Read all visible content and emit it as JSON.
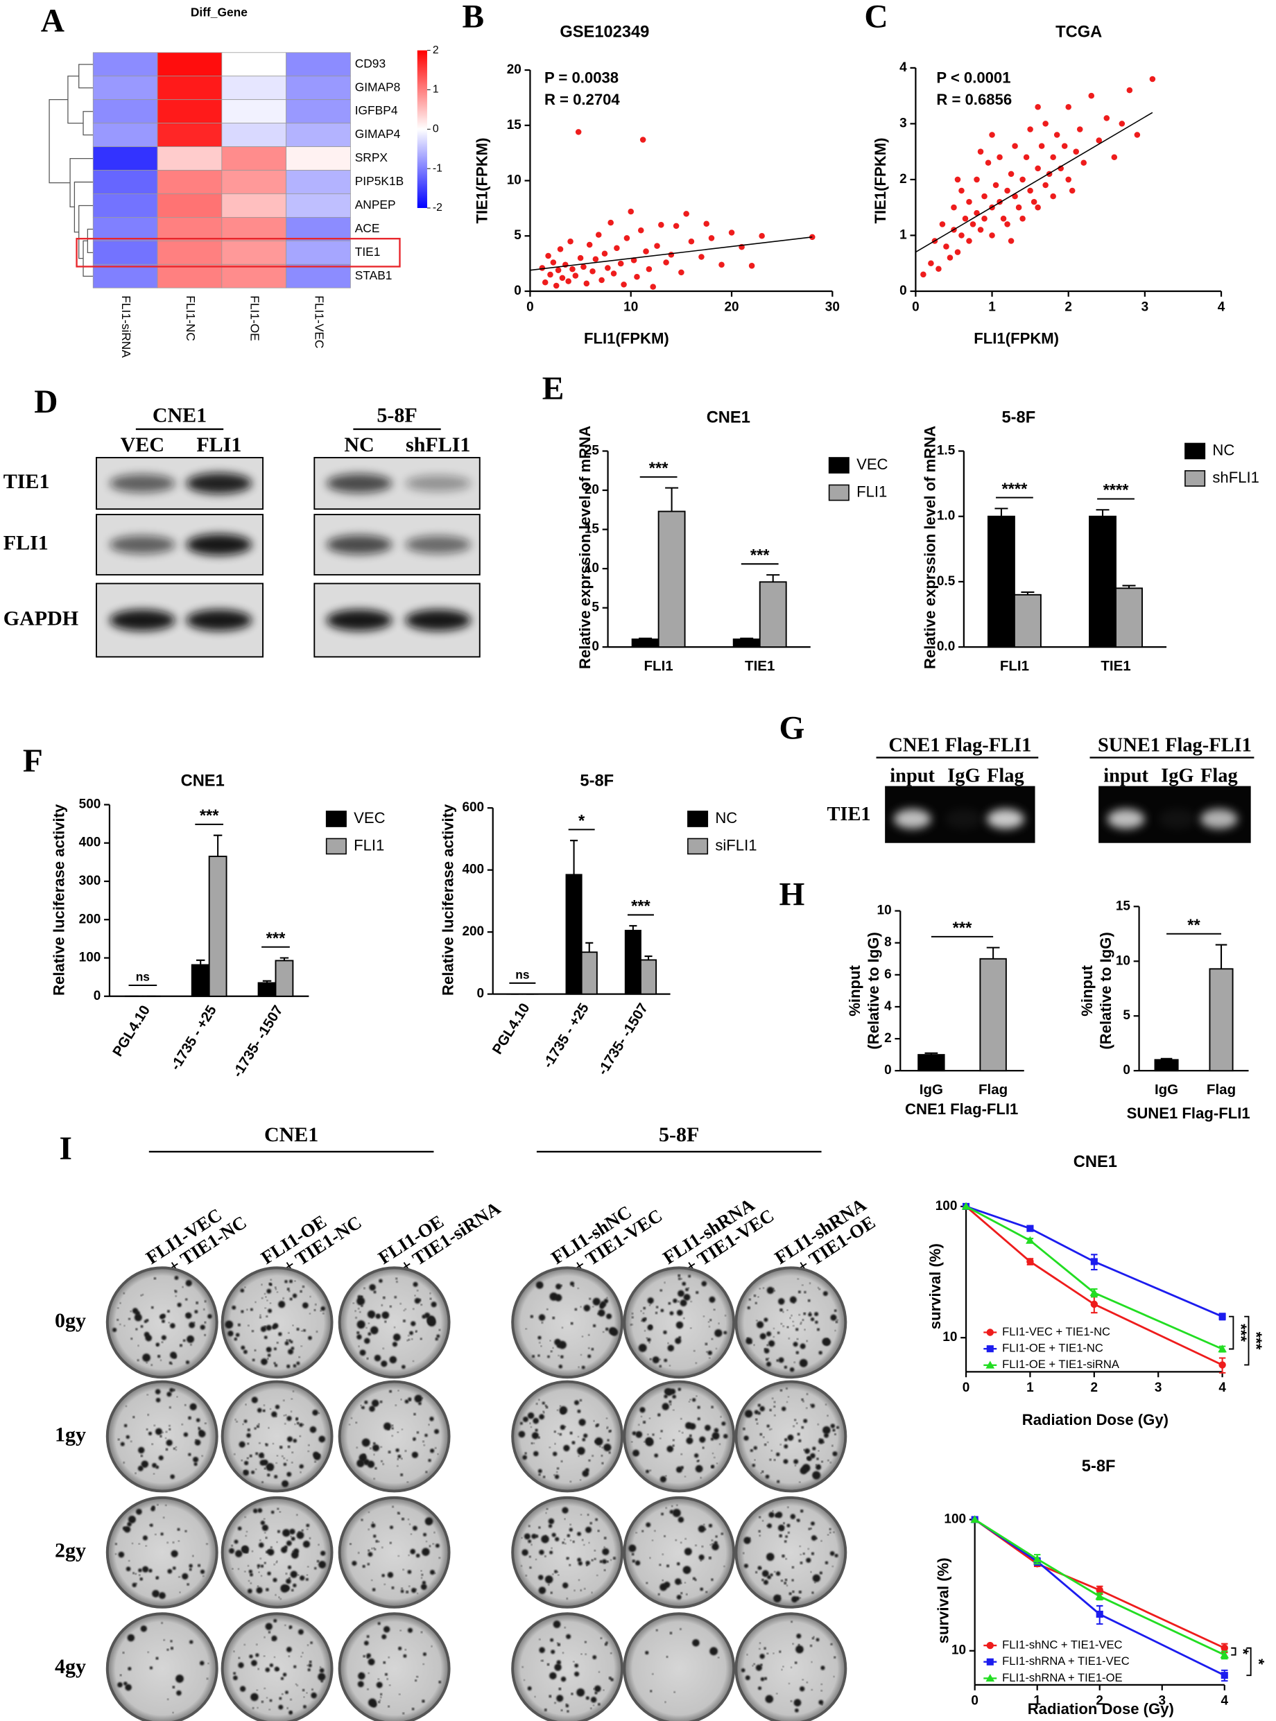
{
  "figure": {
    "panel_letters": [
      "A",
      "B",
      "C",
      "D",
      "E",
      "F",
      "G",
      "H",
      "I"
    ],
    "blot_D": {
      "groups": [
        {
          "name": "CNE1",
          "lanes": [
            "VEC",
            "FLI1"
          ]
        },
        {
          "name": "5-8F",
          "lanes": [
            "NC",
            "shFLI1"
          ]
        }
      ],
      "rows": [
        "TIE1",
        "FLI1",
        "GAPDH"
      ]
    },
    "gel_G": {
      "groups": [
        {
          "name": "CNE1 Flag-FLI1",
          "lanes": [
            "input",
            "IgG",
            "Flag"
          ]
        },
        {
          "name": "SUNE1 Flag-FLI1",
          "lanes": [
            "input",
            "IgG",
            "Flag"
          ]
        }
      ],
      "row": "TIE1"
    },
    "colony_I": {
      "groups": [
        {
          "name": "CNE1",
          "columns": [
            [
              "FLI1-VEC",
              "+ TIE1-NC"
            ],
            [
              "FLI1-OE",
              "+ TIE1-NC"
            ],
            [
              "FLI1-OE",
              "+ TIE1-siRNA"
            ]
          ]
        },
        {
          "name": "5-8F",
          "columns": [
            [
              "FLI1-shNC",
              "+ TIE1-VEC"
            ],
            [
              "FLI1-shRNA",
              "+ TIE1-VEC"
            ],
            [
              "FLI1-shRNA",
              "+ TIE1-OE"
            ]
          ]
        }
      ],
      "rows": [
        "0gy",
        "1gy",
        "2gy",
        "4gy"
      ]
    }
  },
  "chart_data": [
    {
      "type": "heatmap",
      "title": "Diff_Gene",
      "rows": [
        "CD93",
        "GIMAP8",
        "IGFBP4",
        "GIMAP4",
        "SRPX",
        "PIP5K1B",
        "ANPEP",
        "ACE",
        "TIE1",
        "STAB1"
      ],
      "columns": [
        "FLI1-siRNA",
        "FLI1-NC",
        "FLI1-OE",
        "FLI1-VEC"
      ],
      "values": [
        [
          -0.9,
          1.9,
          0.0,
          -0.9
        ],
        [
          -0.8,
          1.8,
          -0.2,
          -0.8
        ],
        [
          -0.9,
          1.8,
          -0.1,
          -0.8
        ],
        [
          -0.8,
          1.7,
          -0.3,
          -0.6
        ],
        [
          -1.6,
          0.4,
          0.9,
          0.1
        ],
        [
          -1.2,
          1.0,
          0.8,
          -0.6
        ],
        [
          -1.1,
          1.1,
          0.5,
          -0.5
        ],
        [
          -1.0,
          1.0,
          0.9,
          -0.9
        ],
        [
          -1.1,
          1.0,
          0.8,
          -0.7
        ],
        [
          -1.0,
          1.0,
          0.9,
          -0.9
        ]
      ],
      "zlim": [
        -2,
        2
      ],
      "zticks": [
        2,
        1,
        0,
        -1,
        -2
      ],
      "colors": [
        "#0000ff",
        "#ffffff",
        "#ff0000"
      ],
      "highlight_row": 8,
      "highlight_color": "#e8262b"
    },
    {
      "type": "scatter",
      "title": "GSE102349",
      "xlabel": "FLI1(FPKM)",
      "ylabel": "TIE1(FPKM)",
      "x": [
        1.2,
        1.5,
        1.8,
        2.0,
        2.3,
        2.6,
        2.8,
        3.0,
        3.2,
        3.5,
        3.8,
        4.0,
        4.2,
        4.5,
        4.8,
        5.0,
        5.3,
        5.6,
        5.9,
        6.2,
        6.5,
        6.8,
        7.1,
        7.4,
        7.7,
        8.0,
        8.3,
        8.6,
        9.0,
        9.3,
        9.6,
        10.0,
        10.3,
        10.6,
        11.0,
        11.2,
        11.5,
        11.8,
        12.2,
        12.6,
        13.0,
        13.5,
        14.0,
        14.5,
        15.0,
        15.5,
        16.0,
        17.0,
        17.5,
        18.0,
        19.0,
        20.0,
        21.0,
        22.0,
        23.0,
        28.0
      ],
      "values": [
        2.1,
        0.8,
        3.2,
        1.5,
        2.6,
        0.5,
        1.9,
        3.8,
        1.2,
        2.4,
        0.9,
        4.5,
        2.0,
        1.4,
        14.4,
        3.0,
        2.2,
        0.7,
        4.2,
        1.8,
        2.9,
        5.1,
        1.0,
        3.4,
        2.1,
        6.2,
        1.6,
        3.9,
        2.5,
        0.6,
        4.8,
        7.2,
        2.8,
        1.3,
        5.5,
        13.7,
        3.6,
        2.0,
        0.4,
        4.1,
        6.0,
        2.6,
        3.3,
        5.9,
        1.7,
        7.0,
        4.5,
        3.1,
        6.1,
        4.8,
        2.4,
        5.3,
        4.0,
        2.3,
        5.0,
        4.9
      ],
      "color": "#ee1c1c",
      "xlim": [
        0,
        30
      ],
      "xticks": [
        0,
        10,
        20,
        30
      ],
      "ylim": [
        0,
        20
      ],
      "yticks": [
        0,
        5,
        10,
        15,
        20
      ],
      "annotations": [
        "P = 0.0038",
        "R =  0.2704"
      ],
      "trendline": {
        "x": [
          0,
          28
        ],
        "y": [
          1.9,
          4.9
        ]
      }
    },
    {
      "type": "scatter",
      "title": "TCGA",
      "xlabel": "FLI1(FPKM)",
      "ylabel": "TIE1(FPKM)",
      "x": [
        0.1,
        0.2,
        0.25,
        0.3,
        0.35,
        0.4,
        0.45,
        0.5,
        0.5,
        0.55,
        0.6,
        0.6,
        0.65,
        0.7,
        0.7,
        0.75,
        0.8,
        0.8,
        0.85,
        0.9,
        0.9,
        0.95,
        1.0,
        1.0,
        1.05,
        1.1,
        1.1,
        1.15,
        1.2,
        1.2,
        1.25,
        1.3,
        1.3,
        1.35,
        1.4,
        1.4,
        1.45,
        1.5,
        1.5,
        1.55,
        1.6,
        1.6,
        1.65,
        1.7,
        1.7,
        1.75,
        1.8,
        1.8,
        1.85,
        1.9,
        1.95,
        2.0,
        2.0,
        2.1,
        2.15,
        2.2,
        2.3,
        2.4,
        2.5,
        2.6,
        2.7,
        2.8,
        2.9,
        3.1,
        0.85,
        1.25,
        1.6,
        2.05,
        0.55,
        1.0
      ],
      "values": [
        0.3,
        0.5,
        0.9,
        0.4,
        1.2,
        0.8,
        0.6,
        1.1,
        1.5,
        0.7,
        1.0,
        1.8,
        1.3,
        0.9,
        1.6,
        1.2,
        1.4,
        2.0,
        1.1,
        1.7,
        1.3,
        2.3,
        1.5,
        1.0,
        1.9,
        1.6,
        2.4,
        1.3,
        1.8,
        1.2,
        2.1,
        1.7,
        2.6,
        1.5,
        2.0,
        1.3,
        2.4,
        1.8,
        2.9,
        1.6,
        2.2,
        1.5,
        2.6,
        1.9,
        3.0,
        2.1,
        2.4,
        1.7,
        2.8,
        2.2,
        2.6,
        2.0,
        3.3,
        2.5,
        2.9,
        2.3,
        3.5,
        2.7,
        3.1,
        2.4,
        3.0,
        3.6,
        2.8,
        3.8,
        2.5,
        0.9,
        3.3,
        1.8,
        2.0,
        2.8
      ],
      "color": "#ee1c1c",
      "xlim": [
        0,
        4
      ],
      "xticks": [
        0,
        1,
        2,
        3,
        4
      ],
      "ylim": [
        0,
        4
      ],
      "yticks": [
        0,
        1,
        2,
        3,
        4
      ],
      "annotations": [
        "P < 0.0001",
        "R =  0.6856"
      ],
      "trendline": {
        "x": [
          0,
          3.1
        ],
        "y": [
          0.7,
          3.2
        ]
      }
    },
    {
      "type": "bar",
      "title": "CNE1",
      "ylabel": "Relative exprssion level of mRNA",
      "categories": [
        "FLI1",
        "TIE1"
      ],
      "series": [
        {
          "name": "VEC",
          "color": "#000000",
          "values": [
            1,
            1
          ],
          "errors": [
            0.1,
            0.1
          ]
        },
        {
          "name": "FLI1",
          "color": "#a6a6a6",
          "values": [
            17.3,
            8.3
          ],
          "errors": [
            3,
            0.9
          ]
        }
      ],
      "ylim": [
        0,
        25
      ],
      "yticks": [
        0,
        5,
        10,
        15,
        20,
        25
      ],
      "significance": [
        "***",
        "***"
      ]
    },
    {
      "type": "bar",
      "title": "5-8F",
      "ylabel": "Relative exprssion level of mRNA",
      "categories": [
        "FLI1",
        "TIE1"
      ],
      "series": [
        {
          "name": "NC",
          "color": "#000000",
          "values": [
            1,
            1
          ],
          "errors": [
            0.06,
            0.05
          ]
        },
        {
          "name": "shFLI1",
          "color": "#a6a6a6",
          "values": [
            0.4,
            0.45
          ],
          "errors": [
            0.02,
            0.02
          ]
        }
      ],
      "ylim": [
        0,
        1.5
      ],
      "yticks": [
        {
          "value": 0,
          "label": "0.0"
        },
        0.5,
        {
          "value": 1,
          "label": "1.0"
        },
        1.5
      ],
      "significance": [
        "****",
        "****"
      ]
    },
    {
      "type": "bar",
      "title": "CNE1",
      "ylabel": "Relative luciferase activity",
      "categories": [
        "PGL4.10",
        "-1735 - +25",
        "-1735- -1507"
      ],
      "series": [
        {
          "name": "VEC",
          "color": "#000000",
          "values": [
            0,
            82,
            35
          ],
          "errors": [
            0,
            12,
            5
          ]
        },
        {
          "name": "FLI1",
          "color": "#a6a6a6",
          "values": [
            0,
            365,
            93
          ],
          "errors": [
            0,
            55,
            7
          ]
        }
      ],
      "ylim": [
        0,
        500
      ],
      "yticks": [
        0,
        100,
        200,
        300,
        400,
        500
      ],
      "significance": [
        "ns",
        "***",
        "***"
      ]
    },
    {
      "type": "bar",
      "title": "5-8F",
      "ylabel": "Relative luciferase activity",
      "categories": [
        "PGL4.10",
        "-1735 - +25",
        "-1735- -1507"
      ],
      "series": [
        {
          "name": "NC",
          "color": "#000000",
          "values": [
            0,
            385,
            205
          ],
          "errors": [
            0,
            110,
            15
          ]
        },
        {
          "name": "siFLI1",
          "color": "#a6a6a6",
          "values": [
            0,
            135,
            110
          ],
          "errors": [
            0,
            30,
            12
          ]
        }
      ],
      "ylim": [
        0,
        600
      ],
      "yticks": [
        0,
        200,
        400,
        600
      ],
      "significance": [
        "ns",
        "*",
        "***"
      ]
    },
    {
      "type": "bar",
      "xlabel": "CNE1 Flag-FLI1",
      "ylabel": [
        "%input",
        "(Relative to IgG)"
      ],
      "categories": [
        "IgG",
        "Flag"
      ],
      "values": [
        1,
        7
      ],
      "errors": [
        0.1,
        0.7
      ],
      "colors": [
        "#000000",
        "#a6a6a6"
      ],
      "ylim": [
        0,
        10
      ],
      "yticks": [
        0,
        2,
        4,
        6,
        8,
        10
      ],
      "significance": [
        "***"
      ]
    },
    {
      "type": "bar",
      "xlabel": "SUNE1 Flag-FLI1",
      "ylabel": [
        "%input",
        "(Relative to IgG)"
      ],
      "categories": [
        "IgG",
        "Flag"
      ],
      "values": [
        1,
        9.3
      ],
      "errors": [
        0.1,
        2.2
      ],
      "colors": [
        "#000000",
        "#a6a6a6"
      ],
      "ylim": [
        0,
        15
      ],
      "yticks": [
        0,
        5,
        10,
        15
      ],
      "significance": [
        "**"
      ]
    },
    {
      "type": "line",
      "title": "CNE1",
      "xlabel": "Radiation Dose (Gy)",
      "ylabel": "survival (%)",
      "x": [
        0,
        1,
        2,
        4
      ],
      "series": [
        {
          "name": "FLI1-VEC + TIE1-NC",
          "color": "#ee1c1c",
          "marker": "circle",
          "values": [
            100,
            38,
            18,
            6.2
          ],
          "errors": [
            0,
            2,
            2.5,
            0.8
          ]
        },
        {
          "name": "FLI1-OE + TIE1-NC",
          "color": "#1c1cee",
          "marker": "square",
          "values": [
            100,
            68,
            38,
            14.5
          ],
          "errors": [
            0,
            3,
            5,
            0.8
          ]
        },
        {
          "name": "FLI1-OE + TIE1-siRNA",
          "color": "#22dd22",
          "marker": "triangle",
          "values": [
            100,
            55,
            22,
            8.2
          ],
          "errors": [
            0,
            2,
            1.5,
            0.4
          ]
        }
      ],
      "xlim": [
        0,
        4
      ],
      "xticks": [
        0,
        1,
        2,
        3,
        4
      ],
      "ylim": [
        5.5,
        100
      ],
      "yticks": [
        10,
        100
      ],
      "log_y": true,
      "significance": [
        "***",
        "***"
      ]
    },
    {
      "type": "line",
      "title": "5-8F",
      "xlabel": "Radiation Dose (Gy)",
      "ylabel": "survival (%)",
      "x": [
        0,
        1,
        2,
        4
      ],
      "series": [
        {
          "name": "FLI1-shNC + TIE1-VEC",
          "color": "#ee1c1c",
          "marker": "circle",
          "values": [
            100,
            46,
            29,
            10.5
          ],
          "errors": [
            0,
            2,
            2,
            0.8
          ]
        },
        {
          "name": "FLI1-shRNA + TIE1-VEC",
          "color": "#1c1cee",
          "marker": "square",
          "values": [
            100,
            48,
            19,
            6.5
          ],
          "errors": [
            0,
            3,
            3,
            0.6
          ]
        },
        {
          "name": "FLI1-shRNA + TIE1-OE",
          "color": "#22dd22",
          "marker": "triangle",
          "values": [
            100,
            50,
            26,
            9.3
          ],
          "errors": [
            0,
            4,
            1.5,
            0.6
          ]
        }
      ],
      "xlim": [
        0,
        4
      ],
      "xticks": [
        0,
        1,
        2,
        3,
        4
      ],
      "ylim": [
        5.5,
        100
      ],
      "yticks": [
        10,
        100
      ],
      "log_y": true,
      "significance": [
        "*",
        "*"
      ]
    }
  ]
}
